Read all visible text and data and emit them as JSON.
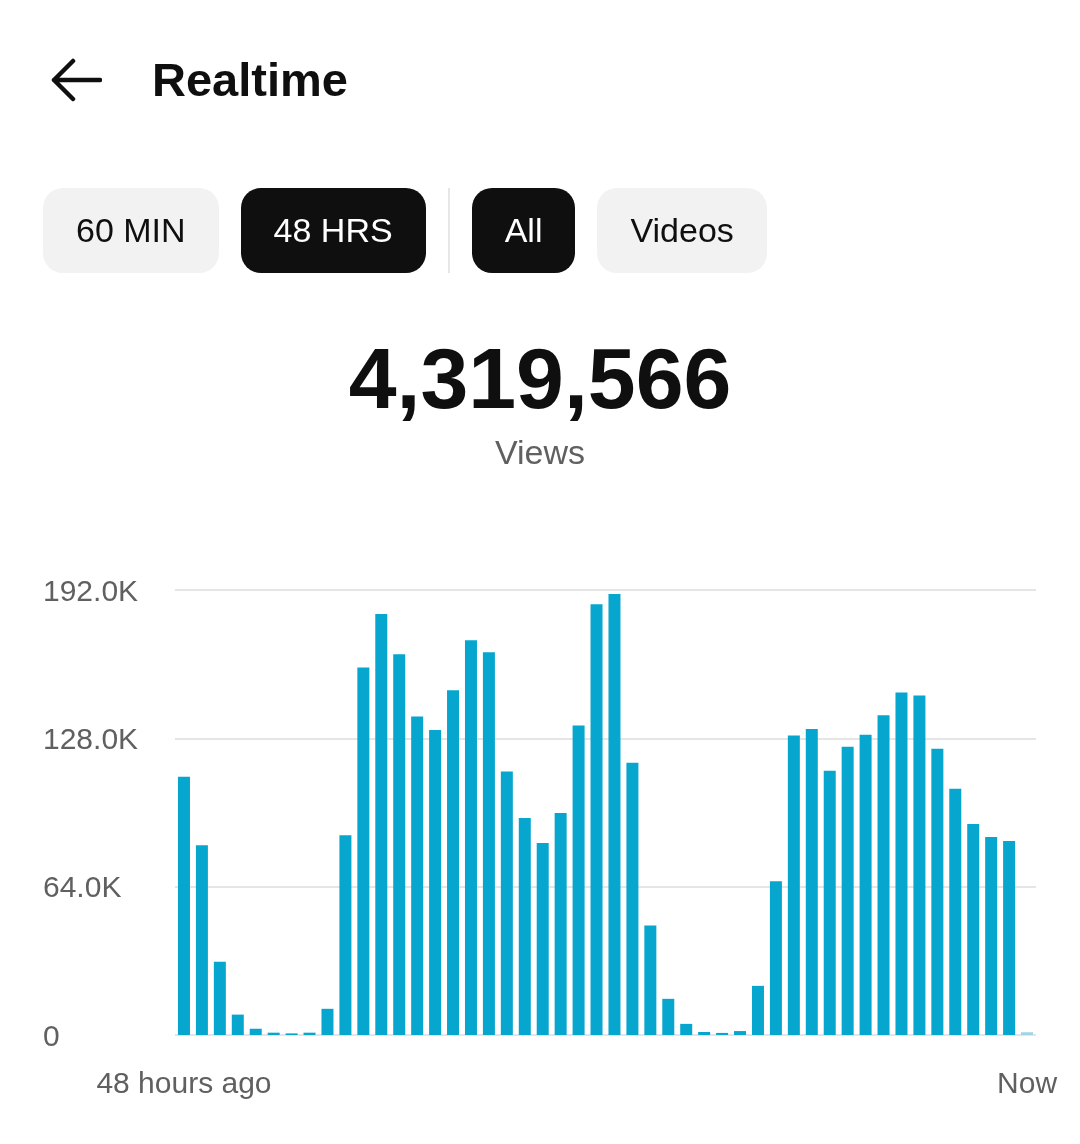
{
  "chart_data": {
    "type": "bar",
    "title": "Realtime",
    "annotations": [
      "60 MIN",
      "48 HRS",
      "All",
      "Videos",
      "4,319,566",
      "Views"
    ],
    "categories": [
      "48 hours ago",
      null,
      null,
      null,
      null,
      null,
      null,
      null,
      null,
      null,
      null,
      null,
      null,
      null,
      null,
      null,
      null,
      null,
      null,
      null,
      null,
      null,
      null,
      null,
      null,
      null,
      null,
      null,
      null,
      null,
      null,
      null,
      null,
      null,
      null,
      null,
      null,
      null,
      null,
      null,
      null,
      null,
      null,
      null,
      null,
      null,
      null,
      "Now"
    ],
    "values": [
      111400,
      81900,
      31600,
      8800,
      2700,
      1000,
      700,
      1000,
      11300,
      86200,
      158600,
      181600,
      164300,
      137400,
      131600,
      148700,
      170300,
      165100,
      113700,
      93600,
      82800,
      95800,
      133500,
      185900,
      190300,
      117500,
      47200,
      15600,
      4800,
      1300,
      900,
      1700,
      21200,
      66300,
      129200,
      132000,
      114000,
      124400,
      129600,
      138000,
      147800,
      146500,
      123500,
      106200,
      91000,
      85400,
      83700,
      1200
    ],
    "colors": [
      "#06a6cf",
      "#06a6cf",
      "#06a6cf",
      "#06a6cf",
      "#06a6cf",
      "#06a6cf",
      "#06a6cf",
      "#06a6cf",
      "#06a6cf",
      "#06a6cf",
      "#06a6cf",
      "#06a6cf",
      "#06a6cf",
      "#06a6cf",
      "#06a6cf",
      "#06a6cf",
      "#06a6cf",
      "#06a6cf",
      "#06a6cf",
      "#06a6cf",
      "#06a6cf",
      "#06a6cf",
      "#06a6cf",
      "#06a6cf",
      "#06a6cf",
      "#06a6cf",
      "#06a6cf",
      "#06a6cf",
      "#06a6cf",
      "#06a6cf",
      "#06a6cf",
      "#06a6cf",
      "#06a6cf",
      "#06a6cf",
      "#06a6cf",
      "#06a6cf",
      "#06a6cf",
      "#06a6cf",
      "#06a6cf",
      "#06a6cf",
      "#06a6cf",
      "#06a6cf",
      "#06a6cf",
      "#06a6cf",
      "#06a6cf",
      "#06a6cf",
      "#06a6cf",
      "#9fd5e5"
    ],
    "ylim": [
      0,
      192000
    ],
    "yticks": [
      0,
      {
        "value": 64000,
        "label": "64.0K"
      },
      {
        "value": 128000,
        "label": "128.0K"
      },
      {
        "value": 192000,
        "label": "192.0K"
      }
    ],
    "grid": "y"
  }
}
